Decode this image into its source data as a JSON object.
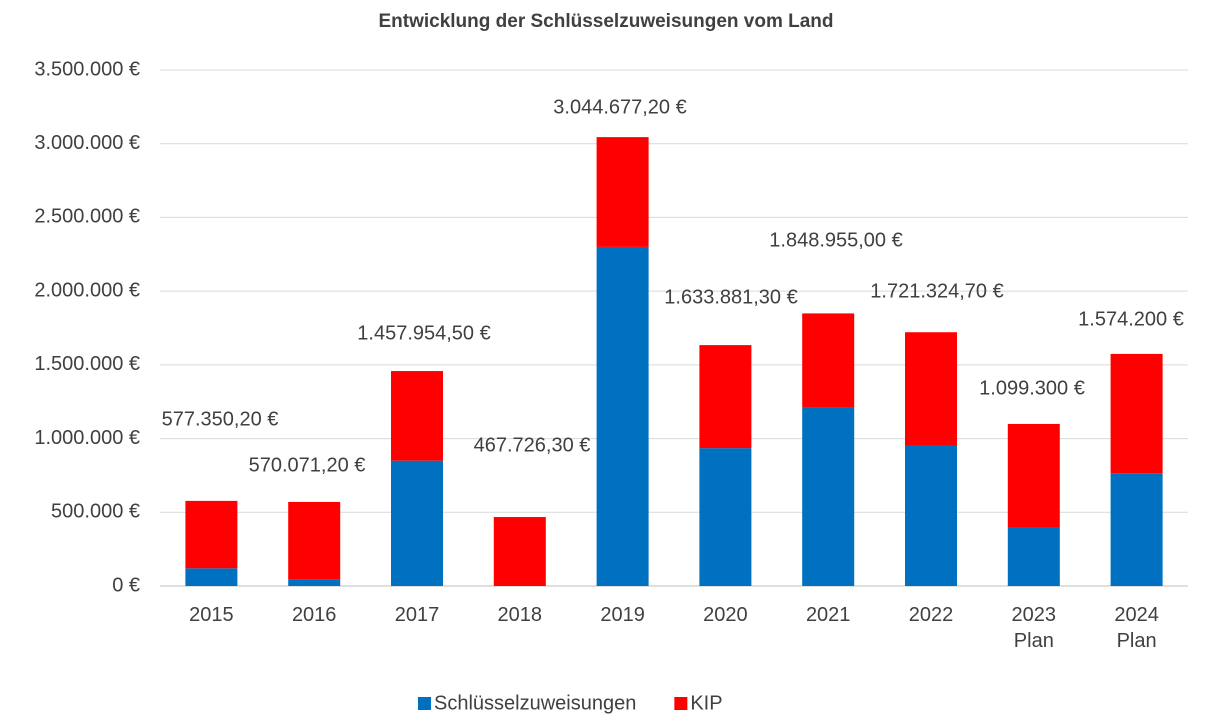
{
  "chart_data": {
    "type": "stacked_bar",
    "title": "Entwicklung der Schlüsselzuweisungen vom Land",
    "categories": [
      "2015",
      "2016",
      "2017",
      "2018",
      "2019",
      "2020",
      "2021",
      "2022",
      "2023\nPlan",
      "2024\nPlan"
    ],
    "series": [
      {
        "name": "Schlüsselzuweisungen",
        "color": "#0070c0",
        "values": [
          120000,
          45000,
          850000,
          0,
          2300000,
          935000,
          1210000,
          950000,
          400000,
          765000
        ]
      },
      {
        "name": "KIP",
        "color": "#ff0000",
        "values": [
          457350.2,
          525071.2,
          607954.5,
          467726.3,
          744677.2,
          698881.3,
          638955,
          771324.7,
          699300,
          809200
        ]
      }
    ],
    "totals": [
      577350.2,
      570071.2,
      1457954.5,
      467726.3,
      3044677.2,
      1633881.3,
      1848955,
      1721324.7,
      1099300,
      1574200
    ],
    "total_labels": [
      "577.350,20 €",
      "570.071,20 €",
      "1.457.954,50 €",
      "467.726,30 €",
      "3.044.677,20 €",
      "1.633.881,30 €",
      "1.848.955,00 €",
      "1.721.324,70 €",
      "1.099.300 €",
      "1.574.200 €"
    ],
    "ylim": [
      0,
      3500000
    ],
    "yticks": [
      {
        "value": 0,
        "label": "0 €"
      },
      {
        "value": 500000,
        "label": "500.000 €"
      },
      {
        "value": 1000000,
        "label": "1.000.000 €"
      },
      {
        "value": 1500000,
        "label": "1.500.000 €"
      },
      {
        "value": 2000000,
        "label": "2.000.000 €"
      },
      {
        "value": 2500000,
        "label": "2.500.000 €"
      },
      {
        "value": 3000000,
        "label": "3.000.000 €"
      },
      {
        "value": 3500000,
        "label": "3.500.000 €"
      }
    ],
    "grid": true,
    "legend": "bottom"
  }
}
